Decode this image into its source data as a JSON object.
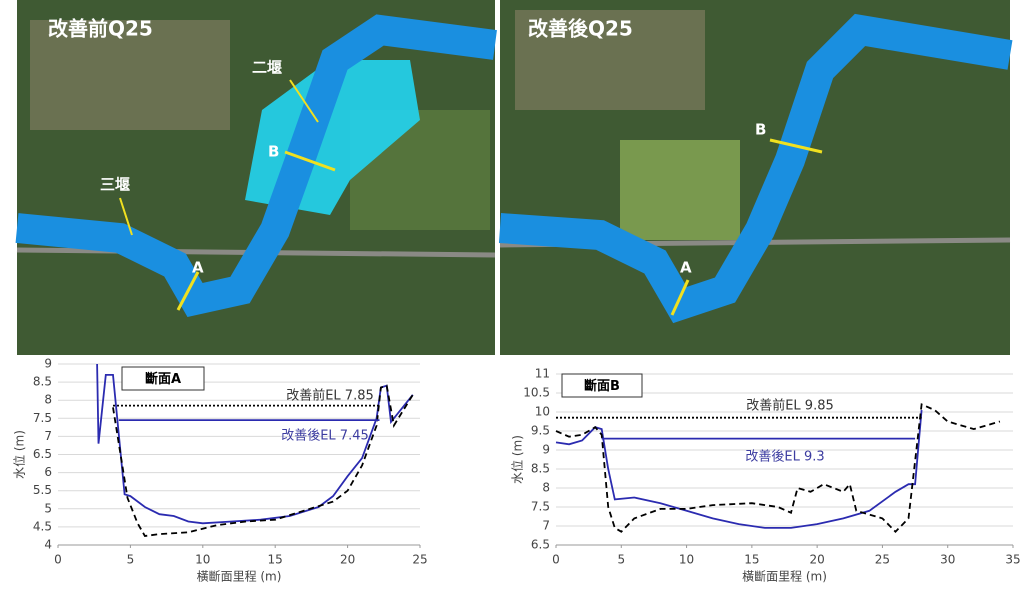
{
  "maps": [
    {
      "title": "改善前Q25",
      "labels": [
        "二堰",
        "B",
        "三堰",
        "A"
      ]
    },
    {
      "title": "改善後Q25",
      "labels": [
        "B",
        "A"
      ]
    }
  ],
  "chart_data": [
    {
      "type": "line",
      "box_label": "斷面A",
      "xlabel": "橫斷面里程 (m)",
      "ylabel": "水位 (m)",
      "xlim": [
        0,
        25
      ],
      "xticks": [
        0,
        5,
        10,
        15,
        20,
        25
      ],
      "ylim": [
        4,
        9
      ],
      "yticks": [
        4,
        4.5,
        5,
        5.5,
        6,
        6.5,
        7,
        7.5,
        8,
        8.5,
        9
      ],
      "grid": true,
      "annotations": [
        {
          "text": "改善前EL 7.85",
          "color": "#333333"
        },
        {
          "text": "改善後EL 7.45",
          "color": "#3c3ca0"
        }
      ],
      "series": [
        {
          "color": "#2b2bb0",
          "style": "solid",
          "x": [
            2.7,
            2.8,
            3.3,
            3.8,
            4.6,
            5,
            6,
            7,
            8,
            9,
            10,
            12,
            14,
            16,
            18,
            19,
            20,
            21,
            22,
            22.3,
            22.7,
            23,
            24.5
          ],
          "values": [
            9,
            6.8,
            8.7,
            8.7,
            5.4,
            5.35,
            5.05,
            4.85,
            4.8,
            4.65,
            4.6,
            4.65,
            4.7,
            4.8,
            5.05,
            5.35,
            5.9,
            6.4,
            7.5,
            8.35,
            8.4,
            7.4,
            8.15
          ]
        },
        {
          "color": "#000000",
          "style": "dashed",
          "x": [
            3.8,
            4.8,
            5.5,
            6,
            7,
            9,
            11,
            13,
            15,
            17,
            19,
            20,
            21,
            22,
            22.3,
            22.7,
            23.2,
            24.5
          ],
          "values": [
            7.8,
            5.3,
            4.6,
            4.25,
            4.3,
            4.35,
            4.55,
            4.65,
            4.7,
            4.95,
            5.2,
            5.5,
            6.2,
            7.3,
            8.35,
            8.4,
            7.3,
            8.15
          ]
        },
        {
          "color": "#000000",
          "style": "dotted",
          "x": [
            3.8,
            22.3
          ],
          "values": [
            7.85,
            7.85
          ]
        },
        {
          "color": "#2b2bb0",
          "style": "solid",
          "x": [
            4.2,
            22.2
          ],
          "values": [
            7.45,
            7.45
          ]
        }
      ]
    },
    {
      "type": "line",
      "box_label": "斷面B",
      "xlabel": "橫斷面里程 (m)",
      "ylabel": "水位 (m)",
      "xlim": [
        0,
        35
      ],
      "xticks": [
        0,
        5,
        10,
        15,
        20,
        25,
        30,
        35
      ],
      "ylim": [
        6.5,
        11
      ],
      "yticks": [
        6.5,
        7,
        7.5,
        8,
        8.5,
        9,
        9.5,
        10,
        10.5,
        11
      ],
      "grid": true,
      "annotations": [
        {
          "text": "改善前EL 9.85",
          "color": "#333333"
        },
        {
          "text": "改善後EL 9.3",
          "color": "#3c3ca0"
        }
      ],
      "series": [
        {
          "color": "#2b2bb0",
          "style": "solid",
          "x": [
            0,
            1,
            2,
            3,
            3.5,
            4,
            4.5,
            6,
            8,
            10,
            12,
            14,
            16,
            18,
            20,
            22,
            24,
            26,
            27,
            27.5,
            28
          ],
          "values": [
            9.2,
            9.15,
            9.25,
            9.6,
            9.55,
            8.5,
            7.7,
            7.75,
            7.6,
            7.4,
            7.2,
            7.05,
            6.95,
            6.95,
            7.05,
            7.2,
            7.4,
            7.9,
            8.1,
            8.1,
            10.05
          ]
        },
        {
          "color": "#000000",
          "style": "dashed",
          "x": [
            0,
            1,
            2,
            3,
            3.5,
            4,
            4.5,
            5,
            6,
            8,
            10,
            12,
            15,
            17,
            18,
            18.5,
            19.5,
            20.5,
            22,
            22.5,
            23,
            25,
            26,
            27,
            28,
            29,
            30,
            32,
            34
          ],
          "values": [
            9.5,
            9.35,
            9.4,
            9.6,
            9.4,
            7.5,
            6.95,
            6.85,
            7.2,
            7.45,
            7.45,
            7.55,
            7.6,
            7.5,
            7.35,
            8,
            7.9,
            8.1,
            7.9,
            8.1,
            7.4,
            7.2,
            6.85,
            7.2,
            10.2,
            10.05,
            9.75,
            9.55,
            9.75
          ]
        },
        {
          "color": "#000000",
          "style": "dotted",
          "x": [
            0,
            28
          ],
          "values": [
            9.85,
            9.85
          ]
        },
        {
          "color": "#2b2bb0",
          "style": "solid",
          "x": [
            3.5,
            27.5
          ],
          "values": [
            9.3,
            9.3
          ]
        }
      ]
    }
  ]
}
